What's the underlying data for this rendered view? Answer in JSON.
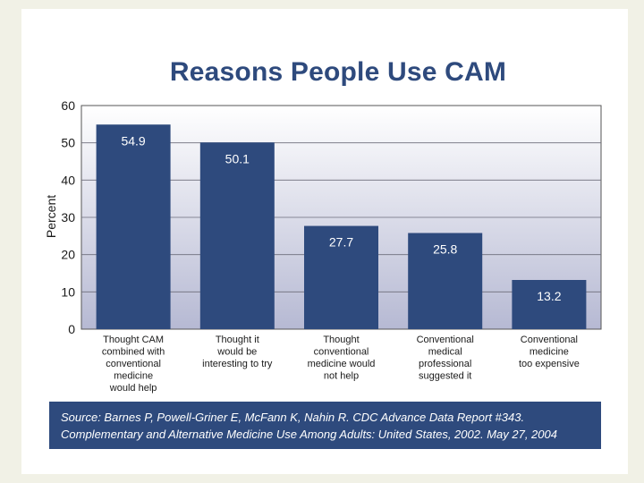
{
  "chart_data": {
    "type": "bar",
    "title": "Reasons People Use CAM",
    "ylabel": "Percent",
    "xlabel": "",
    "ylim": [
      0,
      60
    ],
    "yticks": [
      0,
      10,
      20,
      30,
      40,
      50,
      60
    ],
    "grid": true,
    "categories": [
      [
        "Thought CAM",
        "combined with",
        "conventional",
        "medicine",
        "would help"
      ],
      [
        "Thought it",
        "would be",
        "interesting to try"
      ],
      [
        "Thought",
        "conventional",
        "medicine would",
        "not help"
      ],
      [
        "Conventional",
        "medical",
        "professional",
        "suggested it"
      ],
      [
        "Conventional",
        "medicine",
        "too expensive"
      ]
    ],
    "values": [
      54.9,
      50.1,
      27.7,
      25.8,
      13.2
    ],
    "value_labels": [
      "54.9",
      "50.1",
      "27.7",
      "25.8",
      "13.2"
    ],
    "colors": {
      "bar": "#2e4a7d",
      "title": "#2e4a7d",
      "source_bg": "#2e4a7d"
    }
  },
  "source": {
    "line1": "Source: Barnes P, Powell-Griner E, McFann K, Nahin R. CDC Advance Data Report #343.",
    "line2": "Complementary and Alternative Medicine Use Among Adults: United States, 2002. May 27, 2004"
  }
}
